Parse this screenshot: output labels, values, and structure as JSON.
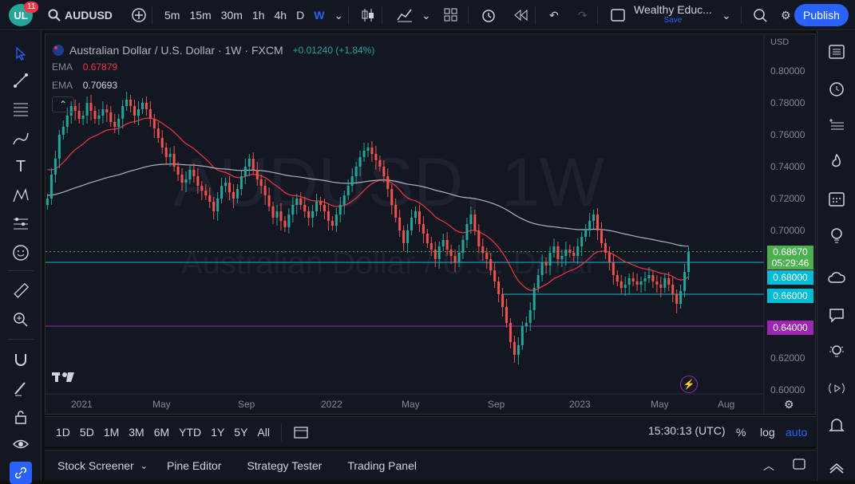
{
  "header": {
    "logo_text": "UL",
    "badge_count": "11",
    "symbol": "AUDUSD",
    "intervals": [
      "5m",
      "15m",
      "30m",
      "1h",
      "4h",
      "D",
      "W"
    ],
    "active_interval": "W",
    "layout_name": "Wealthy Educ...",
    "layout_status": "Save",
    "publish_label": "Publish"
  },
  "legend": {
    "title": "Australian Dollar / U.S. Dollar · 1W · FXCM",
    "change": "+0.01240 (+1.84%)",
    "ema1_label": "EMA",
    "ema1_value": "0.67879",
    "ema2_label": "EMA",
    "ema2_value": "0.70693"
  },
  "watermark": {
    "line1": "AUDUSD, 1W",
    "line2": "Australian Dollar / U.S. Dollar"
  },
  "price_axis": {
    "currency": "USD",
    "ticks": [
      "0.80000",
      "0.78000",
      "0.76000",
      "0.74000",
      "0.72000",
      "0.70000",
      "0.68000",
      "0.66000",
      "0.64000",
      "0.62000",
      "0.60000"
    ],
    "current_price": "0.68670",
    "countdown": "05:29:46",
    "level_1": "0.68000",
    "level_2": "0.66000",
    "level_3": "0.64000"
  },
  "time_axis": {
    "labels": [
      "2021",
      "May",
      "Sep",
      "2022",
      "May",
      "Sep",
      "2023",
      "May",
      "Aug"
    ]
  },
  "bottom_toolbar": {
    "ranges": [
      "1D",
      "5D",
      "1M",
      "3M",
      "6M",
      "YTD",
      "1Y",
      "5Y",
      "All"
    ],
    "clock": "15:30:13 (UTC)",
    "percent": "%",
    "log": "log",
    "auto": "auto"
  },
  "bottom_panel": {
    "tabs": [
      "Stock Screener",
      "Pine Editor",
      "Strategy Tester",
      "Trading Panel"
    ]
  },
  "colors": {
    "up": "#26a69a",
    "down": "#ef5350",
    "ema_fast": "#f23645",
    "ema_slow": "#b2b5be",
    "cyan_level": "#00bcd4",
    "purple_level": "#9c27b0",
    "current_price": "#4caf50"
  },
  "chart_data": {
    "type": "candlestick",
    "title": "Australian Dollar / U.S. Dollar · 1W · FXCM",
    "ylim": [
      0.6,
      0.8
    ],
    "closes": [
      0.72,
      0.735,
      0.745,
      0.76,
      0.765,
      0.772,
      0.778,
      0.775,
      0.77,
      0.772,
      0.78,
      0.775,
      0.77,
      0.772,
      0.776,
      0.774,
      0.768,
      0.765,
      0.77,
      0.778,
      0.782,
      0.778,
      0.772,
      0.776,
      0.78,
      0.776,
      0.77,
      0.764,
      0.758,
      0.752,
      0.746,
      0.748,
      0.74,
      0.735,
      0.73,
      0.732,
      0.738,
      0.734,
      0.728,
      0.725,
      0.722,
      0.718,
      0.712,
      0.72,
      0.728,
      0.73,
      0.724,
      0.72,
      0.726,
      0.734,
      0.74,
      0.745,
      0.738,
      0.732,
      0.728,
      0.722,
      0.715,
      0.708,
      0.712,
      0.706,
      0.702,
      0.71,
      0.716,
      0.72,
      0.716,
      0.712,
      0.708,
      0.712,
      0.718,
      0.716,
      0.712,
      0.706,
      0.703,
      0.71,
      0.716,
      0.722,
      0.728,
      0.734,
      0.74,
      0.746,
      0.75,
      0.752,
      0.748,
      0.744,
      0.74,
      0.734,
      0.726,
      0.716,
      0.708,
      0.7,
      0.692,
      0.7,
      0.708,
      0.712,
      0.704,
      0.698,
      0.692,
      0.688,
      0.682,
      0.69,
      0.694,
      0.688,
      0.684,
      0.68,
      0.686,
      0.694,
      0.704,
      0.71,
      0.7,
      0.69,
      0.686,
      0.682,
      0.675,
      0.668,
      0.66,
      0.652,
      0.642,
      0.63,
      0.622,
      0.628,
      0.64,
      0.642,
      0.65,
      0.664,
      0.672,
      0.68,
      0.678,
      0.686,
      0.69,
      0.682,
      0.684,
      0.688,
      0.686,
      0.684,
      0.69,
      0.696,
      0.7,
      0.706,
      0.71,
      0.7,
      0.692,
      0.686,
      0.68,
      0.672,
      0.668,
      0.664,
      0.666,
      0.67,
      0.668,
      0.666,
      0.668,
      0.67,
      0.672,
      0.668,
      0.666,
      0.664,
      0.67,
      0.666,
      0.66,
      0.654,
      0.662,
      0.674,
      0.6867
    ]
  }
}
